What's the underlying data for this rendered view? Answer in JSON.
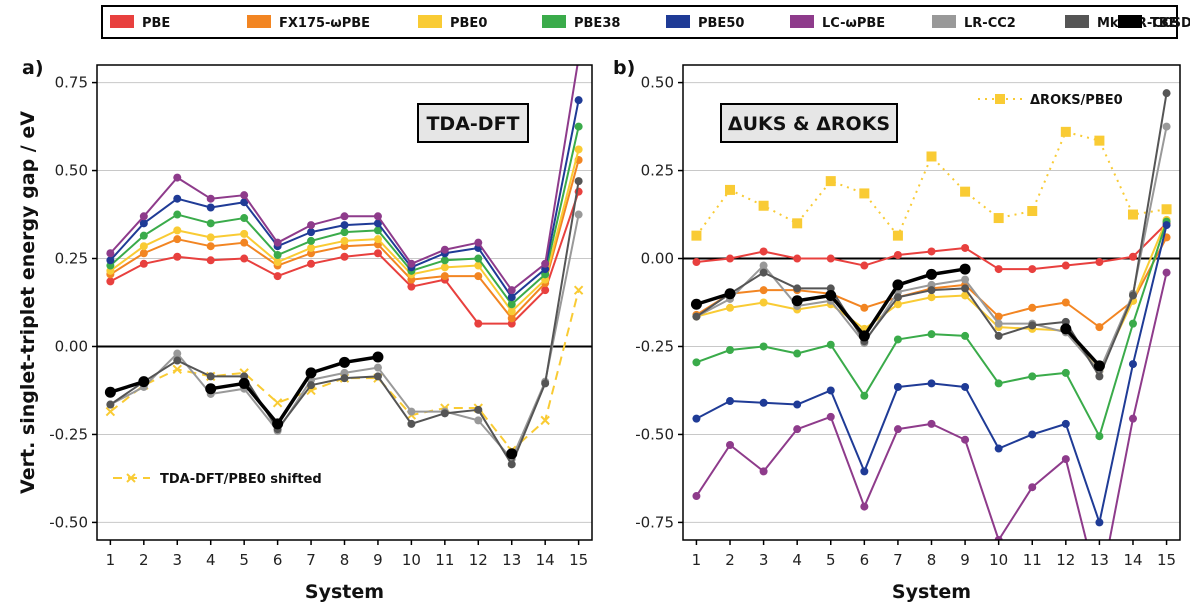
{
  "legend": [
    {
      "name": "PBE",
      "color": "#e8403e"
    },
    {
      "name": "FX175-ωPBE",
      "color": "#f28522"
    },
    {
      "name": "PBE0",
      "color": "#f9cb34"
    },
    {
      "name": "PBE38",
      "color": "#3aab4a"
    },
    {
      "name": "PBE50",
      "color": "#1f3b96"
    },
    {
      "name": "LC-ωPBE",
      "color": "#8e3b8b"
    },
    {
      "name": "LR-CC2",
      "color": "#999999"
    },
    {
      "name": "Mk-MR-CCSD(T)",
      "color": "#555555"
    },
    {
      "name": "TBE",
      "color": "#000000"
    }
  ],
  "chart_data": [
    {
      "type": "line",
      "panel_label": "a)",
      "box_label": "TDA-DFT",
      "annotation": "TDA-DFT/PBE0 shifted",
      "xlabel": "System",
      "ylabel": "Vert. singlet-triplet energy gap / eV",
      "x": [
        1,
        2,
        3,
        4,
        5,
        6,
        7,
        8,
        9,
        10,
        11,
        12,
        13,
        14,
        15
      ],
      "xlim": [
        0.6,
        15.4
      ],
      "ylim": [
        -0.55,
        0.8
      ],
      "yticks": [
        -0.5,
        -0.25,
        0.0,
        0.25,
        0.5,
        0.75
      ],
      "ytick_labels": [
        "-0.50",
        "-0.25",
        "0.00",
        "0.25",
        "0.50",
        "0.75"
      ],
      "grid": true,
      "series": [
        {
          "name": "PBE",
          "color": "#e8403e",
          "values": [
            0.185,
            0.235,
            0.255,
            0.245,
            0.25,
            0.2,
            0.235,
            0.255,
            0.265,
            0.17,
            0.19,
            0.065,
            0.065,
            0.16,
            0.44
          ]
        },
        {
          "name": "FX175-ωPBE",
          "color": "#f28522",
          "values": [
            0.205,
            0.265,
            0.305,
            0.285,
            0.295,
            0.23,
            0.265,
            0.285,
            0.29,
            0.19,
            0.2,
            0.2,
            0.08,
            0.18,
            0.53
          ]
        },
        {
          "name": "PBE0",
          "color": "#f9cb34",
          "values": [
            0.215,
            0.285,
            0.33,
            0.31,
            0.32,
            0.24,
            0.28,
            0.3,
            0.305,
            0.205,
            0.225,
            0.23,
            0.1,
            0.19,
            0.56
          ]
        },
        {
          "name": "PBE38",
          "color": "#3aab4a",
          "values": [
            0.23,
            0.315,
            0.375,
            0.35,
            0.365,
            0.26,
            0.3,
            0.325,
            0.33,
            0.215,
            0.245,
            0.25,
            0.12,
            0.205,
            0.625
          ]
        },
        {
          "name": "PBE50",
          "color": "#1f3b96",
          "values": [
            0.245,
            0.35,
            0.42,
            0.395,
            0.41,
            0.285,
            0.325,
            0.345,
            0.35,
            0.225,
            0.265,
            0.28,
            0.14,
            0.22,
            0.7
          ]
        },
        {
          "name": "LC-ωPBE",
          "color": "#8e3b8b",
          "values": [
            0.265,
            0.37,
            0.48,
            0.42,
            0.43,
            0.295,
            0.345,
            0.37,
            0.37,
            0.235,
            0.275,
            0.295,
            0.16,
            0.235,
            0.82
          ]
        },
        {
          "name": "TDA-DFT/PBE0 shifted",
          "color": "#f9cb34",
          "dashed": true,
          "marker": "x",
          "values": [
            -0.185,
            -0.11,
            -0.065,
            -0.085,
            -0.075,
            -0.16,
            -0.125,
            -0.09,
            -0.09,
            -0.195,
            -0.175,
            -0.175,
            -0.295,
            -0.21,
            0.16
          ]
        },
        {
          "name": "LR-CC2",
          "color": "#999999",
          "values": [
            -0.165,
            -0.115,
            -0.02,
            -0.135,
            -0.12,
            -0.24,
            -0.095,
            -0.075,
            -0.06,
            -0.185,
            -0.185,
            -0.21,
            -0.32,
            -0.1,
            0.375
          ]
        },
        {
          "name": "Mk-MR-CCSD(T)",
          "color": "#555555",
          "values": [
            -0.165,
            -0.1,
            -0.04,
            -0.085,
            -0.085,
            -0.235,
            -0.11,
            -0.09,
            -0.085,
            -0.22,
            -0.19,
            -0.18,
            -0.335,
            -0.105,
            0.47
          ]
        },
        {
          "name": "TBE",
          "color": "#000000",
          "thick": true,
          "values": [
            -0.13,
            -0.1,
            null,
            -0.12,
            -0.105,
            -0.22,
            -0.075,
            -0.045,
            -0.03,
            null,
            null,
            null,
            -0.305,
            null,
            null
          ]
        }
      ]
    },
    {
      "type": "line",
      "panel_label": "b)",
      "box_label": "ΔUKS & ΔROKS",
      "annotation": "ΔROKS/PBE0",
      "xlabel": "System",
      "ylabel": "",
      "x": [
        1,
        2,
        3,
        4,
        5,
        6,
        7,
        8,
        9,
        10,
        11,
        12,
        13,
        14,
        15
      ],
      "xlim": [
        0.6,
        15.4
      ],
      "ylim": [
        -0.8,
        0.55
      ],
      "yticks": [
        -0.75,
        -0.5,
        -0.25,
        0.0,
        0.25,
        0.5
      ],
      "ytick_labels": [
        "-0.75",
        "-0.50",
        "-0.25",
        "0.00",
        "0.25",
        "0.50"
      ],
      "grid": true,
      "series": [
        {
          "name": "ΔROKS/PBE0",
          "color": "#f9cb34",
          "dotted": true,
          "marker": "square",
          "values": [
            0.065,
            0.195,
            0.15,
            0.1,
            0.22,
            0.185,
            0.065,
            0.29,
            0.19,
            0.115,
            0.135,
            0.36,
            0.335,
            0.125,
            0.14
          ]
        },
        {
          "name": "PBE",
          "color": "#e8403e",
          "values": [
            -0.01,
            0.0,
            0.02,
            0.0,
            0.0,
            -0.02,
            0.01,
            0.02,
            0.03,
            -0.03,
            -0.03,
            -0.02,
            -0.01,
            0.005,
            0.1
          ]
        },
        {
          "name": "FX175-ωPBE",
          "color": "#f28522",
          "values": [
            -0.16,
            -0.1,
            -0.09,
            -0.09,
            -0.1,
            -0.14,
            -0.11,
            -0.085,
            -0.075,
            -0.165,
            -0.14,
            -0.125,
            -0.195,
            -0.12,
            0.06
          ]
        },
        {
          "name": "PBE0",
          "color": "#f9cb34",
          "values": [
            -0.165,
            -0.14,
            -0.125,
            -0.145,
            -0.13,
            -0.2,
            -0.13,
            -0.11,
            -0.105,
            -0.195,
            -0.2,
            -0.205,
            -0.32,
            -0.12,
            0.11
          ]
        },
        {
          "name": "PBE38",
          "color": "#3aab4a",
          "values": [
            -0.295,
            -0.26,
            -0.25,
            -0.27,
            -0.245,
            -0.39,
            -0.23,
            -0.215,
            -0.22,
            -0.355,
            -0.335,
            -0.325,
            -0.505,
            -0.185,
            0.105
          ]
        },
        {
          "name": "PBE50",
          "color": "#1f3b96",
          "values": [
            -0.455,
            -0.405,
            -0.41,
            -0.415,
            -0.375,
            -0.605,
            -0.365,
            -0.355,
            -0.365,
            -0.54,
            -0.5,
            -0.47,
            -0.75,
            -0.3,
            0.095
          ]
        },
        {
          "name": "LC-ωPBE",
          "color": "#8e3b8b",
          "values": [
            -0.675,
            -0.53,
            -0.605,
            -0.485,
            -0.45,
            -0.705,
            -0.485,
            -0.47,
            -0.515,
            -0.8,
            -0.65,
            -0.57,
            -0.95,
            -0.455,
            -0.04
          ]
        },
        {
          "name": "LR-CC2",
          "color": "#999999",
          "values": [
            -0.165,
            -0.115,
            -0.02,
            -0.135,
            -0.12,
            -0.24,
            -0.095,
            -0.075,
            -0.06,
            -0.185,
            -0.185,
            -0.21,
            -0.32,
            -0.1,
            0.375
          ]
        },
        {
          "name": "Mk-MR-CCSD(T)",
          "color": "#555555",
          "values": [
            -0.165,
            -0.1,
            -0.04,
            -0.085,
            -0.085,
            -0.235,
            -0.11,
            -0.09,
            -0.085,
            -0.22,
            -0.19,
            -0.18,
            -0.335,
            -0.105,
            0.47
          ]
        },
        {
          "name": "TBE",
          "color": "#000000",
          "thick": true,
          "values": [
            -0.13,
            -0.1,
            null,
            -0.12,
            -0.105,
            -0.22,
            -0.075,
            -0.045,
            -0.03,
            null,
            null,
            -0.2,
            -0.305,
            null,
            null
          ]
        }
      ]
    }
  ]
}
